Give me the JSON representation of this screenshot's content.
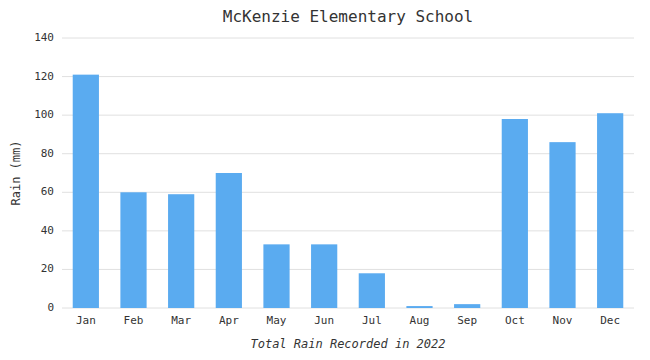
{
  "chart_data": {
    "type": "bar",
    "title": "McKenzie Elementary School",
    "xlabel": "Total Rain Recorded in 2022",
    "ylabel": "Rain (mm)",
    "categories": [
      "Jan",
      "Feb",
      "Mar",
      "Apr",
      "May",
      "Jun",
      "Jul",
      "Aug",
      "Sep",
      "Oct",
      "Nov",
      "Dec"
    ],
    "values": [
      121,
      60,
      59,
      70,
      33,
      33,
      18,
      1,
      2,
      98,
      86,
      101
    ],
    "color": "#5aabf0",
    "ylim": [
      0,
      140
    ],
    "yticks": [
      0,
      20,
      40,
      60,
      80,
      100,
      120,
      140
    ],
    "grid": true
  }
}
